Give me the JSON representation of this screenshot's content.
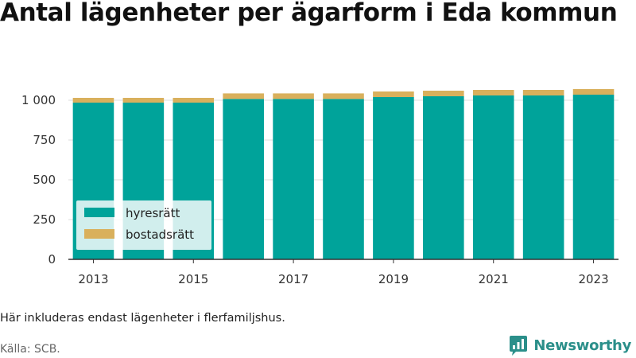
{
  "title": "Antal lägenheter per ägarform i Eda kommun",
  "note": "Här inkluderas endast lägenheter i flerfamiljshus.",
  "source": "Källa: SCB.",
  "brand": "Newsworthy",
  "icon": "newsworthy-logo-icon",
  "colors": {
    "hyresratt": "#00a39a",
    "bostadsratt": "#d9b05c",
    "grid": "#dddddd",
    "axis": "#333333",
    "brand": "#2b8f8a"
  },
  "chart_data": {
    "type": "bar",
    "stacked": true,
    "categories": [
      "2013",
      "2014",
      "2015",
      "2016",
      "2017",
      "2018",
      "2019",
      "2020",
      "2021",
      "2022",
      "2023"
    ],
    "x_tick_labels": [
      "2013",
      "2015",
      "2017",
      "2019",
      "2021",
      "2023"
    ],
    "y_tick_labels": [
      "0",
      "250",
      "500",
      "750",
      "1 000"
    ],
    "y_ticks": [
      0,
      250,
      500,
      750,
      1000
    ],
    "ylim": [
      0,
      1000
    ],
    "grid": true,
    "legend_position": "bottom-left",
    "series": [
      {
        "name": "hyresrätt",
        "values": [
          985,
          985,
          985,
          1008,
          1008,
          1008,
          1020,
          1025,
          1030,
          1030,
          1035
        ]
      },
      {
        "name": "bostadsrätt",
        "values": [
          30,
          30,
          30,
          35,
          35,
          35,
          35,
          35,
          35,
          35,
          35
        ]
      }
    ]
  }
}
